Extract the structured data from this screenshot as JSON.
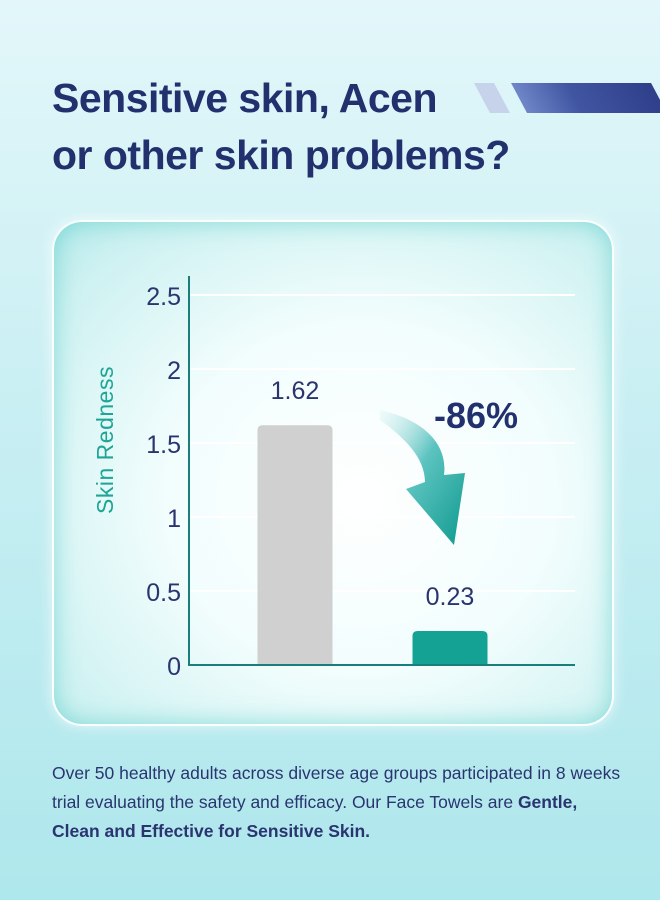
{
  "headline": {
    "line1": "Sensitive skin, Acen",
    "line2": "or other skin problems?"
  },
  "chart_data": {
    "type": "bar",
    "title": "",
    "xlabel": "",
    "ylabel": "Skin Redness",
    "ylim": [
      0,
      2.5
    ],
    "y_ticks": [
      "0",
      "0.5",
      "1",
      "1.5",
      "2",
      "2.5"
    ],
    "grid": true,
    "values": [
      1.62,
      0.23
    ],
    "data_labels": [
      "1.62",
      "0.23"
    ],
    "bar_colors": [
      "#d0d0d0",
      "#14a294"
    ],
    "annotation": "-86%"
  },
  "colors": {
    "headline": "#23306e",
    "ylabel": "#1ea596",
    "tick": "#2a3570",
    "annotation": "#23306e",
    "axis": "#1a7f7a",
    "grid": "#ffffff"
  },
  "caption": {
    "text": "Over 50 healthy adults across diverse age groups participated in 8 weeks trial evaluating the safety and efficacy. Our Face Towels are ",
    "bold": "Gentle, Clean and Effective for Sensitive Skin."
  }
}
